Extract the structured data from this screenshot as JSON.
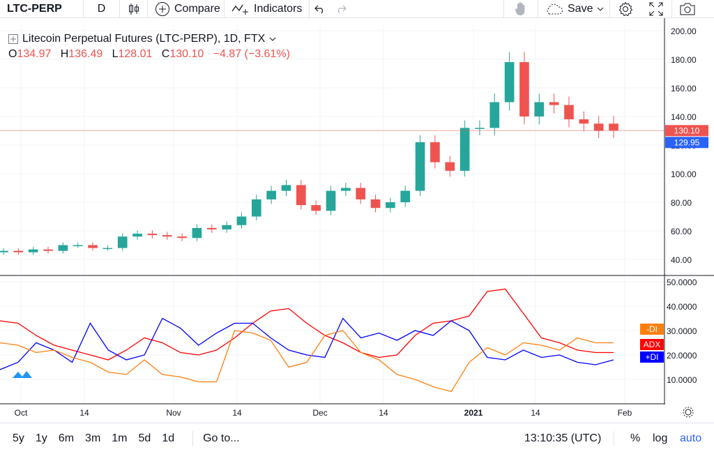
{
  "toolbar": {
    "symbol": "LTC-PERP",
    "interval": "D",
    "compare_label": "Compare",
    "indicators_label": "Indicators",
    "save_label": "Save"
  },
  "legend": {
    "title": "Litecoin Perpetual Futures (LTC-PERP), 1D, FTX",
    "open_key": "O",
    "open": "134.97",
    "high_key": "H",
    "high": "136.49",
    "low_key": "L",
    "low": "128.01",
    "close_key": "C",
    "close": "130.10",
    "change": "−4.87 (−3.61%)"
  },
  "price_axis": {
    "ticks": [
      "200.00",
      "180.00",
      "160.00",
      "140.00",
      "120.00",
      "100.00",
      "80.00",
      "60.00",
      "40.00"
    ],
    "last_price": "130.10",
    "line_price": "129.95"
  },
  "adx_axis": {
    "ticks": [
      "50.0000",
      "40.0000",
      "30.0000",
      "20.0000",
      "10.0000"
    ],
    "labels": [
      {
        "text": "-DI",
        "color": "#ff7f0e"
      },
      {
        "text": "ADX",
        "color": "#ff0000"
      },
      {
        "text": "+DI",
        "color": "#0000ff"
      }
    ]
  },
  "time_axis": [
    "Oct",
    "14",
    "Nov",
    "14",
    "Dec",
    "14",
    "2021",
    "14",
    "Feb"
  ],
  "colors": {
    "up": "#26a69a",
    "down": "#ef5350",
    "adx": "#ff0000",
    "plus_di": "#0000ff",
    "minus_di": "#ff7f0e"
  },
  "bottom": {
    "ranges": [
      "5y",
      "1y",
      "6m",
      "3m",
      "1m",
      "5d",
      "1d"
    ],
    "goto": "Go to...",
    "time": "13:10:35 (UTC)",
    "percent": "%",
    "log": "log",
    "auto": "auto"
  },
  "chart_data": [
    {
      "type": "candlestick",
      "title": "Litecoin Perpetual Futures (LTC-PERP), 1D, FTX",
      "ylim": [
        30,
        205
      ],
      "x": [
        "Sep 28",
        "Oct 1",
        "Oct 4",
        "Oct 7",
        "Oct 10",
        "Oct 13",
        "Oct 16",
        "Oct 19",
        "Oct 22",
        "Oct 25",
        "Oct 28",
        "Oct 31",
        "Nov 3",
        "Nov 6",
        "Nov 9",
        "Nov 12",
        "Nov 15",
        "Nov 18",
        "Nov 21",
        "Nov 24",
        "Nov 27",
        "Nov 30",
        "Dec 3",
        "Dec 6",
        "Dec 9",
        "Dec 12",
        "Dec 15",
        "Dec 18",
        "Dec 21",
        "Dec 24",
        "Dec 27",
        "Dec 30",
        "Jan 2",
        "Jan 5",
        "Jan 8",
        "Jan 11",
        "Jan 14",
        "Jan 17",
        "Jan 20",
        "Jan 23",
        "Jan 26",
        "Jan 28"
      ],
      "close": [
        46,
        45,
        47,
        46,
        50,
        50,
        48,
        48,
        56,
        58,
        57,
        56,
        55,
        62,
        61,
        64,
        70,
        82,
        88,
        92,
        78,
        74,
        88,
        90,
        82,
        76,
        80,
        88,
        122,
        108,
        102,
        132,
        132,
        150,
        178,
        140,
        150,
        148,
        138,
        135,
        130,
        130.1
      ],
      "open": [
        45,
        46,
        45,
        47,
        46,
        50,
        50,
        48,
        48,
        56,
        58,
        57,
        56,
        55,
        62,
        61,
        64,
        70,
        82,
        88,
        92,
        78,
        74,
        88,
        90,
        82,
        76,
        80,
        88,
        122,
        108,
        102,
        132,
        132,
        150,
        178,
        140,
        150,
        148,
        138,
        135,
        134.97
      ]
    },
    {
      "type": "line",
      "title": "ADX / DI",
      "ylim": [
        0,
        52
      ],
      "series": [
        {
          "name": "ADX",
          "values": [
            34,
            33,
            28,
            24,
            22,
            20,
            18,
            22,
            27,
            25,
            21,
            20,
            22,
            27,
            33,
            38,
            39,
            33,
            28,
            25,
            21,
            19,
            20,
            28,
            33,
            34,
            36,
            46,
            47,
            37,
            27,
            25,
            22,
            21,
            21
          ]
        },
        {
          "name": "+DI",
          "values": [
            14,
            17,
            25,
            22,
            17,
            33,
            22,
            18,
            20,
            35,
            31,
            24,
            29,
            33,
            33,
            27,
            22,
            20,
            19,
            35,
            27,
            29,
            26,
            30,
            28,
            34,
            30,
            19,
            18,
            22,
            19,
            20,
            17,
            16,
            18
          ]
        },
        {
          "name": "-DI",
          "values": [
            25,
            24,
            21,
            22,
            19,
            17,
            13,
            12,
            18,
            12,
            11,
            9,
            9,
            30,
            29,
            26,
            15,
            17,
            28,
            30,
            21,
            18,
            12,
            10,
            7,
            5,
            17,
            23,
            20,
            25,
            24,
            22,
            27,
            25,
            25
          ]
        }
      ]
    }
  ]
}
